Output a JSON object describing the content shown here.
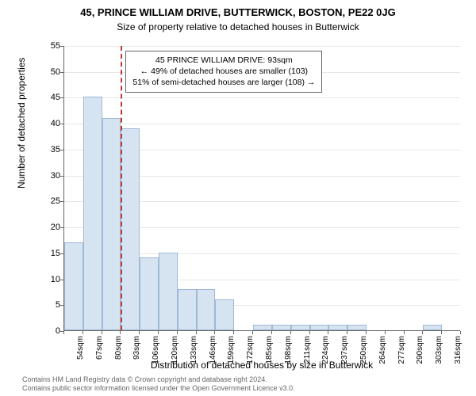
{
  "title_main": "45, PRINCE WILLIAM DRIVE, BUTTERWICK, BOSTON, PE22 0JG",
  "title_sub": "Size of property relative to detached houses in Butterwick",
  "y_axis_label": "Number of detached properties",
  "x_axis_label": "Distribution of detached houses by size in Butterwick",
  "chart": {
    "type": "histogram",
    "background_color": "#ffffff",
    "grid_color": "#e6e6e6",
    "axis_color": "#666666",
    "bar_fill": "#d6e4f2",
    "bar_stroke": "#9fb8d4",
    "bar_stroke_width": 1,
    "marker_color": "#c0392b",
    "ylim": [
      0,
      55
    ],
    "ytick_step": 5,
    "x_categories": [
      "54sqm",
      "67sqm",
      "80sqm",
      "93sqm",
      "106sqm",
      "120sqm",
      "133sqm",
      "146sqm",
      "159sqm",
      "172sqm",
      "185sqm",
      "198sqm",
      "211sqm",
      "224sqm",
      "237sqm",
      "250sqm",
      "264sqm",
      "277sqm",
      "290sqm",
      "303sqm",
      "316sqm"
    ],
    "values": [
      17,
      45,
      41,
      39,
      14,
      15,
      8,
      8,
      6,
      0,
      1,
      1,
      1,
      1,
      1,
      1,
      0,
      0,
      0,
      1,
      0
    ],
    "marker_category_index": 3,
    "annotation": {
      "line1": "45 PRINCE WILLIAM DRIVE: 93sqm",
      "line2": "← 49% of detached houses are smaller (103)",
      "line3": "51% of semi-detached houses are larger (108) →"
    }
  },
  "attribution": {
    "line1": "Contains HM Land Registry data © Crown copyright and database right 2024.",
    "line2": "Contains public sector information licensed under the Open Government Licence v3.0."
  },
  "fonts": {
    "title_main_size": 13,
    "title_sub_size": 12,
    "axis_label_size": 12,
    "tick_label_size": 11,
    "annotation_size": 10.5,
    "attribution_size": 9
  }
}
